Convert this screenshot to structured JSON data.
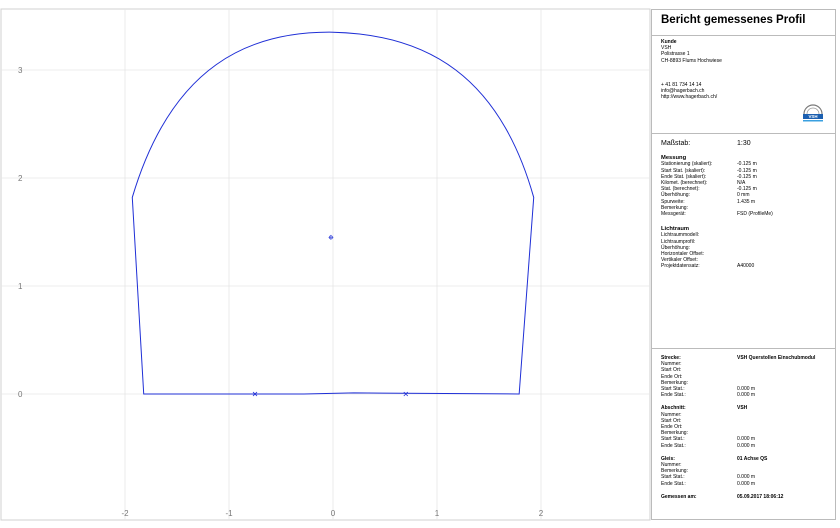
{
  "plot": {
    "x_ticks": [
      "-2",
      "-1",
      "0",
      "1",
      "2"
    ],
    "y_ticks": [
      "0",
      "1",
      "2",
      "3"
    ],
    "line_color": "#1f2fd6"
  },
  "report": {
    "title": "Bericht gemessenes Profil",
    "customer": {
      "heading": "Kunde",
      "lines": [
        "VSH",
        "Polistrasse 1",
        "CH-8893 Flums Hochwiese"
      ],
      "contact": [
        "+ 41 81 734 14 14",
        "info@hagerbach.ch",
        "http://www.hagerbach.ch/"
      ],
      "logo_text": "VSH"
    },
    "scale": {
      "label": "Maßstab:",
      "value": "1:30"
    },
    "measurement": {
      "heading": "Messung",
      "rows": [
        {
          "k": "Stationierung (skaliert):",
          "v": "-0.125 m"
        },
        {
          "k": "Start Stat. (skaliert):",
          "v": "-0.125 m"
        },
        {
          "k": "Ende Stat. (skaliert):",
          "v": "-0.125 m"
        },
        {
          "k": "Kilomet. (berechnet):",
          "v": "N/A"
        },
        {
          "k": "Stat. (berechnet):",
          "v": "-0.125 m"
        },
        {
          "k": "Überhöhung:",
          "v": "0 mm"
        },
        {
          "k": "Spurweite:",
          "v": "1.435 m"
        },
        {
          "k": "Bemerkung:",
          "v": ""
        },
        {
          "k": "Messgerät:",
          "v": "FSD (ProfileMe)"
        }
      ]
    },
    "clearance": {
      "heading": "Lichtraum",
      "rows": [
        {
          "k": "Lichtraummodell:",
          "v": ""
        },
        {
          "k": "Lichtraumprofil:",
          "v": ""
        },
        {
          "k": "Überhöhung:",
          "v": ""
        },
        {
          "k": "Horizontaler Offset:",
          "v": ""
        },
        {
          "k": "Vertikaler Offset:",
          "v": ""
        },
        {
          "k": "Projektdatensatz:",
          "v": "A40000"
        }
      ]
    },
    "route": {
      "head": {
        "k": "Strecke:",
        "v": "VSH Querstollen Einschubmodul"
      },
      "rows": [
        {
          "k": "Nummer:",
          "v": ""
        },
        {
          "k": "Start Ort:",
          "v": ""
        },
        {
          "k": "Ende Ort:",
          "v": ""
        },
        {
          "k": "Bemerkung:",
          "v": ""
        },
        {
          "k": "Start Stat.:",
          "v": "0.000 m"
        },
        {
          "k": "Ende Stat.:",
          "v": "0.000 m"
        }
      ]
    },
    "section": {
      "head": {
        "k": "Abschnitt:",
        "v": "VSH"
      },
      "rows": [
        {
          "k": "Nummer:",
          "v": ""
        },
        {
          "k": "Start Ort:",
          "v": ""
        },
        {
          "k": "Ende Ort:",
          "v": ""
        },
        {
          "k": "Bemerkung:",
          "v": ""
        },
        {
          "k": "Start Stat.:",
          "v": "0.000 m"
        },
        {
          "k": "Ende Stat.:",
          "v": "0.000 m"
        }
      ]
    },
    "track": {
      "head": {
        "k": "Gleis:",
        "v": "01 Achse QS"
      },
      "rows": [
        {
          "k": "Nummer:",
          "v": ""
        },
        {
          "k": "Bemerkung:",
          "v": ""
        },
        {
          "k": "Start Stat.:",
          "v": "0.000 m"
        },
        {
          "k": "Ende Stat.:",
          "v": "0.000 m"
        }
      ]
    },
    "measured": {
      "k": "Gemessen am:",
      "v": "05.09.2017 18:06:12"
    }
  }
}
